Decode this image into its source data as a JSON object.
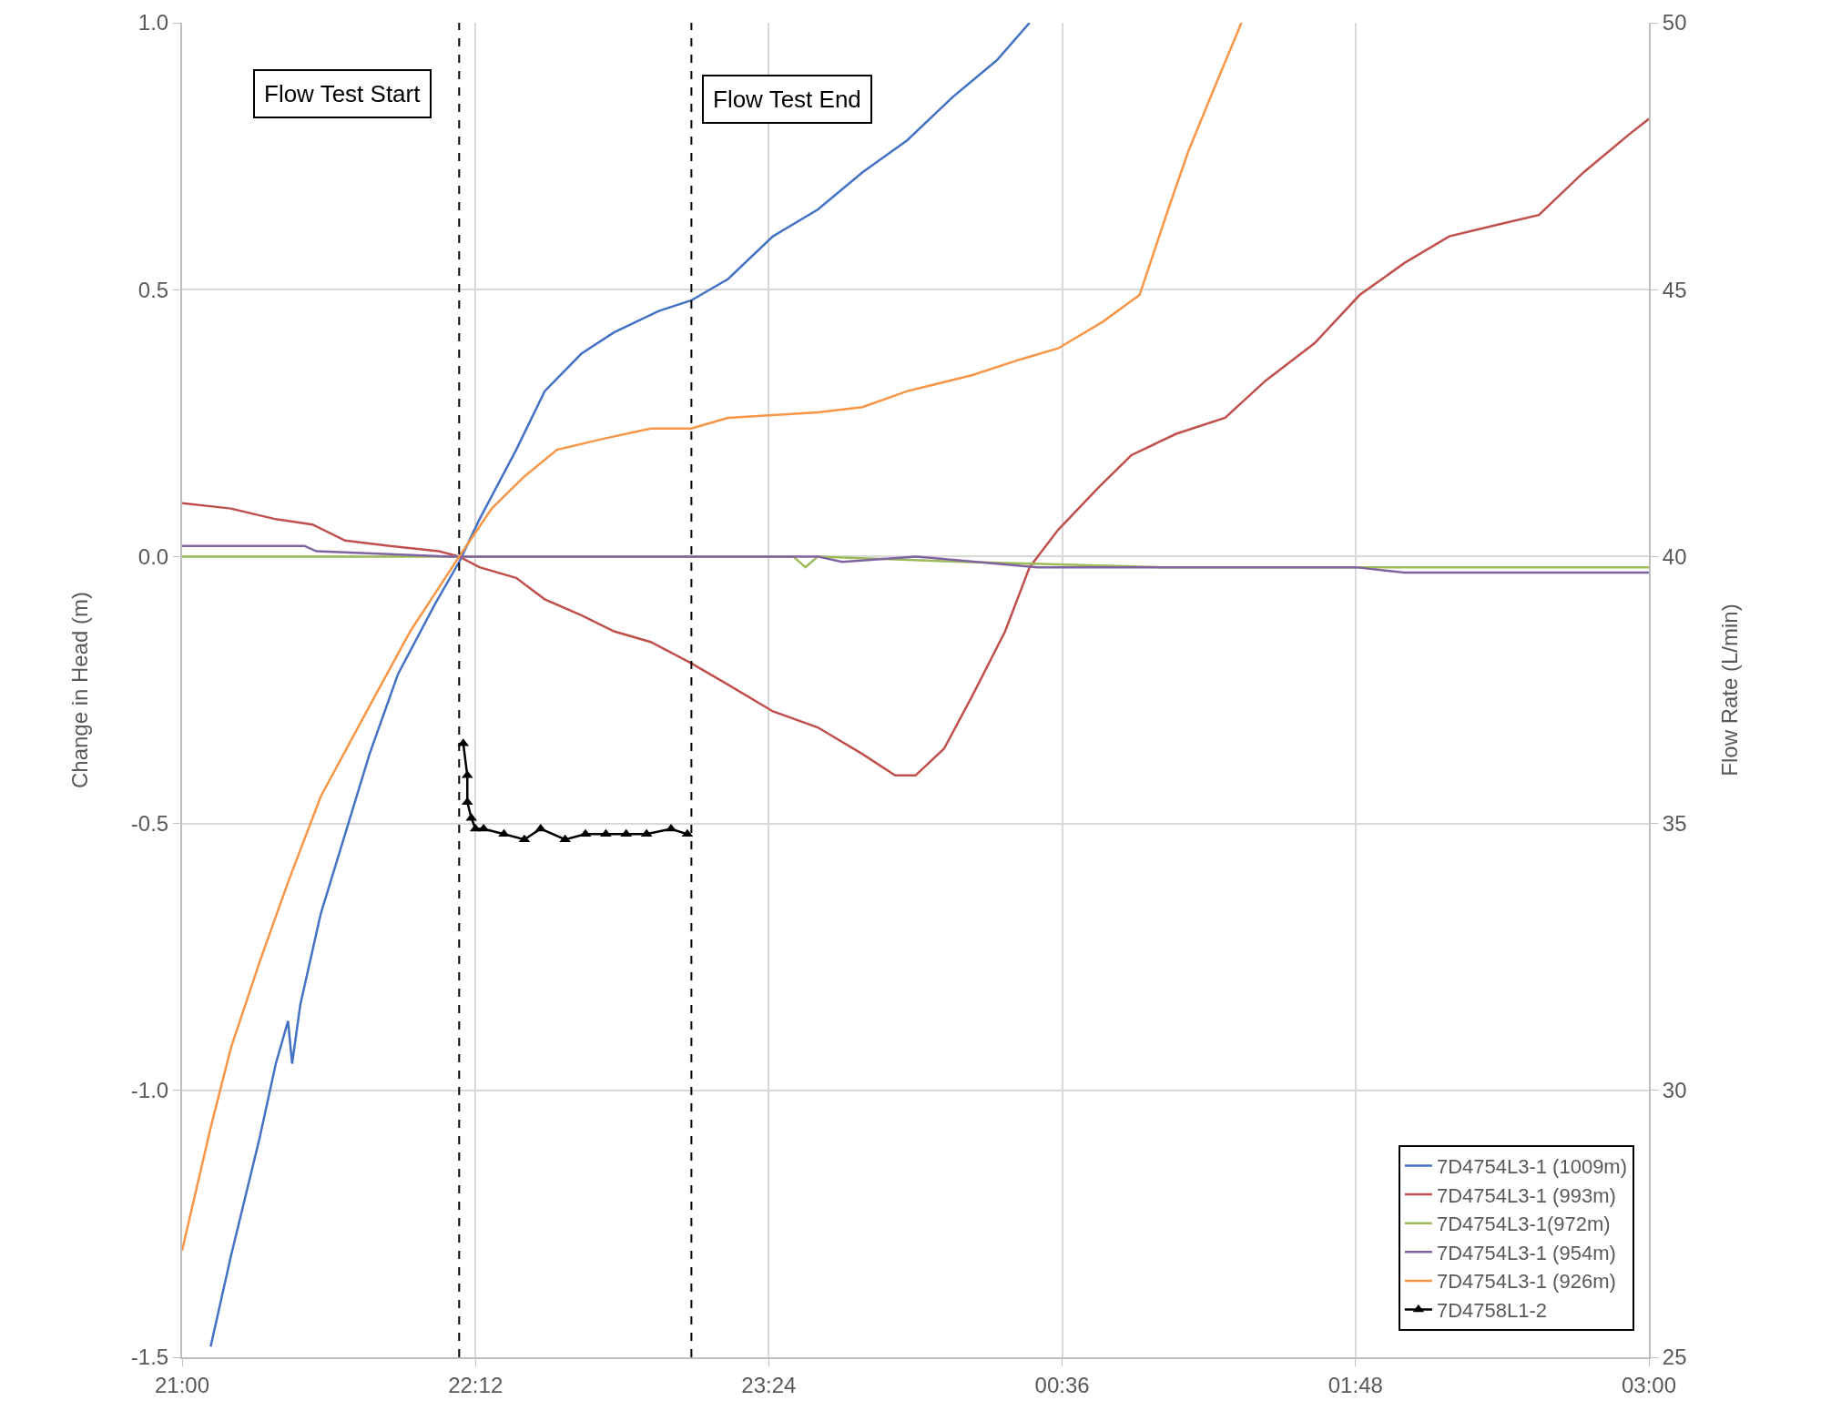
{
  "chart_data": {
    "type": "line",
    "ylabel": "Change in Head (m)",
    "y2label": "Flow Rate (L/min)",
    "xlim": [
      "2000-01-01T21:00",
      "2000-01-02T03:00"
    ],
    "xticks": [
      {
        "value": "2000-01-01T21:00",
        "label": "21:00"
      },
      {
        "value": "2000-01-01T22:12",
        "label": "22:12"
      },
      {
        "value": "2000-01-01T23:24",
        "label": "23:24"
      },
      {
        "value": "2000-01-02T00:36",
        "label": "00:36"
      },
      {
        "value": "2000-01-02T01:48",
        "label": "01:48"
      },
      {
        "value": "2000-01-02T03:00",
        "label": "03:00"
      }
    ],
    "ylim": [
      -1.5,
      1.0
    ],
    "yticks": [
      {
        "value": -1.5,
        "label": "-1.5"
      },
      {
        "value": -1.0,
        "label": "-1.0"
      },
      {
        "value": -0.5,
        "label": "-0.5"
      },
      {
        "value": 0.0,
        "label": "0.0"
      },
      {
        "value": 0.5,
        "label": "0.5"
      },
      {
        "value": 1.0,
        "label": "1.0"
      }
    ],
    "y2lim": [
      25,
      50
    ],
    "y2ticks": [
      25,
      30,
      35,
      40,
      45,
      50
    ],
    "grid": true,
    "legend": "bottom right",
    "line_style": "solid",
    "ref_lines": [
      {
        "axis": "x",
        "value": "2000-01-01T22:08",
        "label": "Flow Test Start",
        "color": "#000000",
        "line_style": "dashed"
      },
      {
        "axis": "x",
        "value": "2000-01-01T23:05",
        "label": "Flow Test End",
        "color": "#000000",
        "line_style": "dashed"
      }
    ],
    "series": [
      {
        "name": "7D4754L3-1 (1009m)",
        "color": "#4472c4",
        "marker": "none",
        "x": [
          "2000-01-01T21:07",
          "2000-01-01T21:12",
          "2000-01-01T21:19",
          "2000-01-01T21:23",
          "2000-01-01T21:26",
          "2000-01-01T21:27",
          "2000-01-01T21:29",
          "2000-01-01T21:34",
          "2000-01-01T21:40",
          "2000-01-01T21:46",
          "2000-01-01T21:53",
          "2000-01-01T22:02",
          "2000-01-01T22:08",
          "2000-01-01T22:13",
          "2000-01-01T22:22",
          "2000-01-01T22:29",
          "2000-01-01T22:38",
          "2000-01-01T22:46",
          "2000-01-01T22:57",
          "2000-01-01T23:05",
          "2000-01-01T23:14",
          "2000-01-01T23:25",
          "2000-01-01T23:36",
          "2000-01-01T23:47",
          "2000-01-01T23:58",
          "2000-01-02T00:09",
          "2000-01-02T00:20",
          "2000-01-02T00:28"
        ],
        "values": [
          -1.48,
          -1.31,
          -1.09,
          -0.95,
          -0.87,
          -0.95,
          -0.84,
          -0.67,
          -0.52,
          -0.37,
          -0.22,
          -0.09,
          -0.01,
          0.07,
          0.2,
          0.31,
          0.38,
          0.42,
          0.46,
          0.48,
          0.52,
          0.6,
          0.65,
          0.72,
          0.78,
          0.86,
          0.93,
          1.0
        ]
      },
      {
        "name": "7D4754L3-1 (993m)",
        "color": "#c0504d",
        "marker": "none",
        "x": [
          "2000-01-01T21:00",
          "2000-01-01T21:12",
          "2000-01-01T21:23",
          "2000-01-01T21:32",
          "2000-01-01T21:40",
          "2000-01-01T21:51",
          "2000-01-01T22:03",
          "2000-01-01T22:08",
          "2000-01-01T22:13",
          "2000-01-01T22:22",
          "2000-01-01T22:29",
          "2000-01-01T22:38",
          "2000-01-01T22:46",
          "2000-01-01T22:55",
          "2000-01-01T23:05",
          "2000-01-01T23:14",
          "2000-01-01T23:25",
          "2000-01-01T23:36",
          "2000-01-01T23:47",
          "2000-01-01T23:55",
          "2000-01-02T00:00",
          "2000-01-02T00:07",
          "2000-01-02T00:14",
          "2000-01-02T00:22",
          "2000-01-02T00:28",
          "2000-01-02T00:35",
          "2000-01-02T00:45",
          "2000-01-02T00:53",
          "2000-01-02T01:04",
          "2000-01-02T01:16",
          "2000-01-02T01:26",
          "2000-01-02T01:38",
          "2000-01-02T01:49",
          "2000-01-02T02:00",
          "2000-01-02T02:11",
          "2000-01-02T02:22",
          "2000-01-02T02:33",
          "2000-01-02T02:44",
          "2000-01-02T02:55",
          "2000-01-02T03:00"
        ],
        "values": [
          0.1,
          0.09,
          0.07,
          0.06,
          0.03,
          0.02,
          0.01,
          0.0,
          -0.02,
          -0.04,
          -0.08,
          -0.11,
          -0.14,
          -0.16,
          -0.2,
          -0.24,
          -0.29,
          -0.32,
          -0.37,
          -0.41,
          -0.41,
          -0.36,
          -0.26,
          -0.14,
          -0.02,
          0.05,
          0.13,
          0.19,
          0.23,
          0.26,
          0.33,
          0.4,
          0.49,
          0.55,
          0.6,
          0.62,
          0.64,
          0.72,
          0.79,
          0.82
        ]
      },
      {
        "name": "7D4754L3-1(972m)",
        "color": "#9bbb59",
        "marker": "none",
        "x": [
          "2000-01-01T21:00",
          "2000-01-01T23:30",
          "2000-01-01T23:33",
          "2000-01-01T23:36",
          "2000-01-02T00:12",
          "2000-01-02T01:00",
          "2000-01-02T02:00",
          "2000-01-02T03:00"
        ],
        "values": [
          0.0,
          0.0,
          -0.02,
          0.0,
          -0.01,
          -0.02,
          -0.02,
          -0.02
        ]
      },
      {
        "name": "7D4754L3-1 (954m)",
        "color": "#8064a2",
        "marker": "none",
        "x": [
          "2000-01-01T21:00",
          "2000-01-01T21:30",
          "2000-01-01T21:33",
          "2000-01-01T22:06",
          "2000-01-01T22:12",
          "2000-01-01T23:36",
          "2000-01-01T23:42",
          "2000-01-02T00:00",
          "2000-01-02T00:30",
          "2000-01-02T01:48",
          "2000-01-02T02:00",
          "2000-01-02T03:00"
        ],
        "values": [
          0.02,
          0.02,
          0.01,
          0.0,
          0.0,
          0.0,
          -0.01,
          0.0,
          -0.02,
          -0.02,
          -0.03,
          -0.03
        ]
      },
      {
        "name": "7D4754L3-1 (926m)",
        "color": "#f79646",
        "marker": "none",
        "x": [
          "2000-01-01T21:00",
          "2000-01-01T21:07",
          "2000-01-01T21:12",
          "2000-01-01T21:19",
          "2000-01-01T21:26",
          "2000-01-01T21:34",
          "2000-01-01T21:46",
          "2000-01-01T21:56",
          "2000-01-01T22:08",
          "2000-01-01T22:16",
          "2000-01-01T22:24",
          "2000-01-01T22:32",
          "2000-01-01T22:43",
          "2000-01-01T22:55",
          "2000-01-01T23:05",
          "2000-01-01T23:14",
          "2000-01-01T23:36",
          "2000-01-01T23:47",
          "2000-01-01T23:58",
          "2000-01-02T00:14",
          "2000-01-02T00:26",
          "2000-01-02T00:35",
          "2000-01-02T00:46",
          "2000-01-02T00:55",
          "2000-01-02T01:02",
          "2000-01-02T01:07",
          "2000-01-02T01:14",
          "2000-01-02T01:20"
        ],
        "values": [
          -1.3,
          -1.07,
          -0.92,
          -0.76,
          -0.61,
          -0.45,
          -0.28,
          -0.14,
          0.0,
          0.09,
          0.15,
          0.2,
          0.22,
          0.24,
          0.24,
          0.26,
          0.27,
          0.28,
          0.31,
          0.34,
          0.37,
          0.39,
          0.44,
          0.49,
          0.65,
          0.76,
          0.89,
          1.0
        ]
      },
      {
        "name": "7D4758L1-2",
        "color": "#000000",
        "marker": "triangle",
        "axis": "y2",
        "x": [
          "2000-01-01T22:09",
          "2000-01-01T22:10",
          "2000-01-01T22:10",
          "2000-01-01T22:11",
          "2000-01-01T22:12",
          "2000-01-01T22:14",
          "2000-01-01T22:19",
          "2000-01-01T22:24",
          "2000-01-01T22:28",
          "2000-01-01T22:34",
          "2000-01-01T22:39",
          "2000-01-01T22:44",
          "2000-01-01T22:49",
          "2000-01-01T22:54",
          "2000-01-01T23:00",
          "2000-01-01T23:04"
        ],
        "values": [
          36.5,
          35.9,
          35.4,
          35.1,
          34.9,
          34.9,
          34.8,
          34.7,
          34.9,
          34.7,
          34.8,
          34.8,
          34.8,
          34.8,
          34.9,
          34.8
        ]
      }
    ]
  }
}
